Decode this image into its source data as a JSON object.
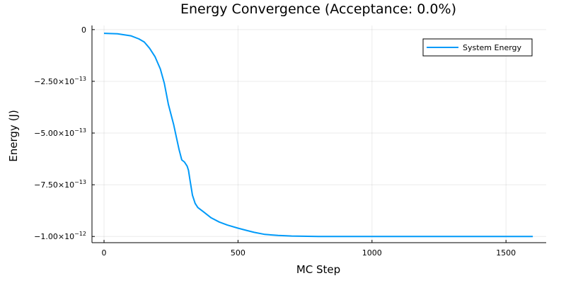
{
  "chart_data": {
    "type": "line",
    "title": "Energy Convergence (Acceptance: 0.0%)",
    "xlabel": "MC Step",
    "ylabel": "Energy (J)",
    "xlim": [
      -45,
      1650
    ],
    "ylim": [
      -1.03e-12,
      2e-14
    ],
    "x_ticks": [
      0,
      500,
      1000,
      1500
    ],
    "x_tick_labels": [
      "0",
      "500",
      "1000",
      "1500"
    ],
    "y_ticks": [
      0,
      -2.5e-13,
      -5e-13,
      -7.5e-13,
      -1e-12
    ],
    "y_tick_labels": [
      {
        "mantissa": "0",
        "exponent": ""
      },
      {
        "mantissa": "−2.50×10",
        "exponent": "−13"
      },
      {
        "mantissa": "−5.00×10",
        "exponent": "−13"
      },
      {
        "mantissa": "−7.50×10",
        "exponent": "−13"
      },
      {
        "mantissa": "−1.00×10",
        "exponent": "−12"
      }
    ],
    "grid": true,
    "legend_position": "top-right",
    "series": [
      {
        "name": "System Energy",
        "color": "#009AF9",
        "x": [
          0,
          50,
          100,
          130,
          150,
          170,
          190,
          210,
          225,
          240,
          250,
          260,
          270,
          280,
          290,
          300,
          310,
          315,
          320,
          330,
          340,
          350,
          370,
          400,
          430,
          460,
          500,
          530,
          560,
          600,
          650,
          700,
          800,
          1000,
          1200,
          1400,
          1600
        ],
        "y": [
          -1.8e-14,
          -2e-14,
          -3e-14,
          -4.5e-14,
          -6e-14,
          -9e-14,
          -1.3e-13,
          -1.9e-13,
          -2.6e-13,
          -3.6e-13,
          -4.1e-13,
          -4.6e-13,
          -5.2e-13,
          -5.8e-13,
          -6.3e-13,
          -6.4e-13,
          -6.6e-13,
          -6.8e-13,
          -7.2e-13,
          -8e-13,
          -8.4e-13,
          -8.6e-13,
          -8.8e-13,
          -9.1e-13,
          -9.3e-13,
          -9.45e-13,
          -9.6e-13,
          -9.7e-13,
          -9.8e-13,
          -9.9e-13,
          -9.95e-13,
          -9.98e-13,
          -1e-12,
          -1e-12,
          -1e-12,
          -1e-12,
          -1e-12
        ]
      }
    ]
  }
}
